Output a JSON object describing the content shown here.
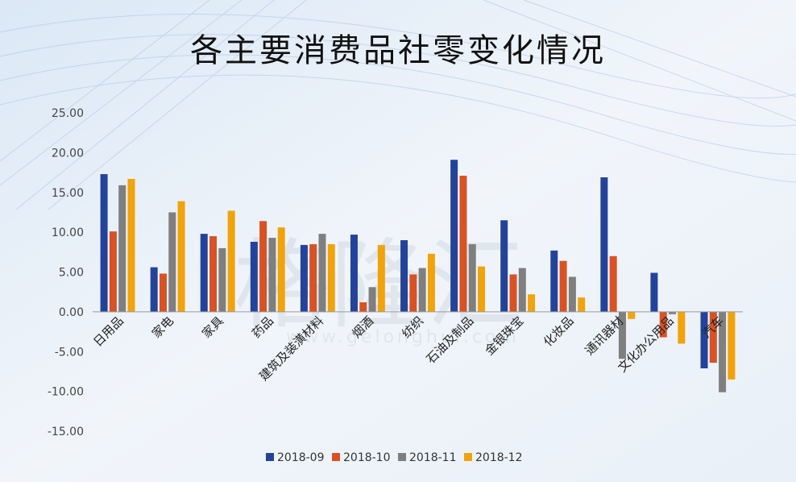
{
  "chart_data": {
    "type": "bar",
    "title": "各主要消费品社零变化情况",
    "categories": [
      "日用品",
      "家电",
      "家具",
      "药品",
      "建筑及装潢材料",
      "烟酒",
      "纺织",
      "石油及制品",
      "金银珠宝",
      "化妆品",
      "通讯器材",
      "文化办公用品",
      "汽车"
    ],
    "series": [
      {
        "name": "2018-09",
        "color": "#23439b",
        "values": [
          17.3,
          5.6,
          9.8,
          8.8,
          8.4,
          9.7,
          9.0,
          19.1,
          11.5,
          7.7,
          16.9,
          4.9,
          -7.1
        ]
      },
      {
        "name": "2018-10",
        "color": "#d85224",
        "values": [
          10.1,
          4.8,
          9.5,
          11.4,
          8.5,
          1.2,
          4.7,
          17.1,
          4.7,
          6.4,
          7.0,
          -3.2,
          -6.4
        ]
      },
      {
        "name": "2018-11",
        "color": "#7f7f7f",
        "values": [
          15.9,
          12.5,
          8.0,
          9.3,
          9.8,
          3.1,
          5.5,
          8.5,
          5.5,
          4.4,
          -5.9,
          -0.3,
          -10.1
        ]
      },
      {
        "name": "2018-12",
        "color": "#f0a30a",
        "values": [
          16.7,
          13.9,
          12.7,
          10.6,
          8.5,
          8.4,
          7.3,
          5.7,
          2.2,
          1.8,
          -0.9,
          -4.0,
          -8.5
        ]
      }
    ],
    "yticks": [
      "25.00",
      "20.00",
      "15.00",
      "10.00",
      "5.00",
      "0.00",
      "-5.00",
      "-10.00",
      "-15.00"
    ],
    "ylim": [
      -15,
      25
    ],
    "grid": false,
    "legend_position": "bottom"
  },
  "watermark": {
    "main": "格隆汇",
    "url": "www.gelonghui.com"
  }
}
